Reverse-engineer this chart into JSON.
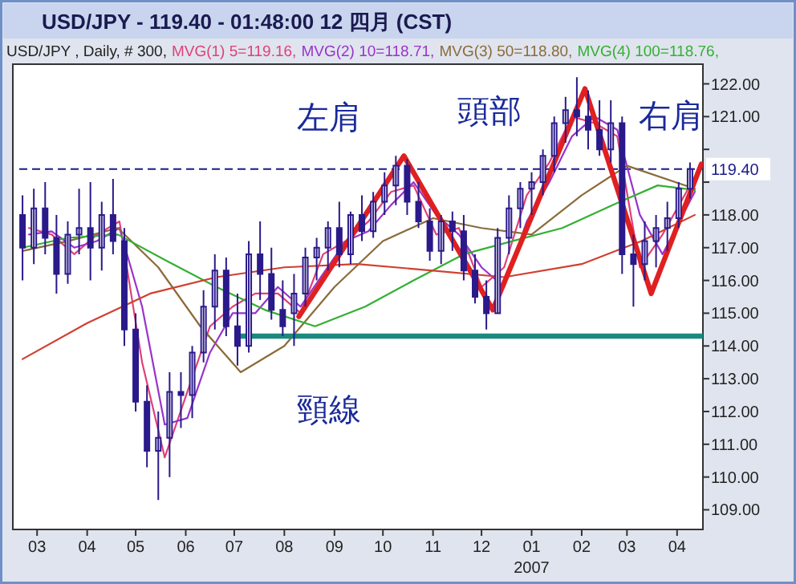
{
  "chart_data": {
    "type": "candlestick",
    "title": "USD/JPY - 119.40 - 01:48:00  12 四月 (CST)",
    "subtitle": "USD/JPY , Daily, # 300,",
    "color": "#2a1a8a",
    "x": [
      "2006-02-20",
      "2006-02-27",
      "2006-03-06",
      "2006-03-13",
      "2006-03-20",
      "2006-03-27",
      "2006-04-03",
      "2006-04-10",
      "2006-04-17",
      "2006-04-24",
      "2006-05-01",
      "2006-05-08",
      "2006-05-15",
      "2006-05-22",
      "2006-05-29",
      "2006-06-05",
      "2006-06-12",
      "2006-06-19",
      "2006-06-26",
      "2006-07-03",
      "2006-07-10",
      "2006-07-17",
      "2006-07-24",
      "2006-07-31",
      "2006-08-07",
      "2006-08-14",
      "2006-08-21",
      "2006-08-28",
      "2006-09-04",
      "2006-09-11",
      "2006-09-18",
      "2006-09-25",
      "2006-10-02",
      "2006-10-09",
      "2006-10-16",
      "2006-10-23",
      "2006-10-30",
      "2006-11-06",
      "2006-11-13",
      "2006-11-20",
      "2006-11-27",
      "2006-12-04",
      "2006-12-11",
      "2006-12-18",
      "2006-12-25",
      "2007-01-01",
      "2007-01-08",
      "2007-01-15",
      "2007-01-22",
      "2007-01-29",
      "2007-02-05",
      "2007-02-12",
      "2007-02-19",
      "2007-02-26",
      "2007-03-05",
      "2007-03-12",
      "2007-03-19",
      "2007-03-26",
      "2007-04-02",
      "2007-04-09"
    ],
    "ohlc": [
      [
        118.0,
        118.6,
        116.0,
        117.0
      ],
      [
        117.0,
        118.8,
        116.5,
        118.2
      ],
      [
        118.2,
        119.0,
        116.8,
        117.3
      ],
      [
        117.3,
        118.0,
        115.6,
        116.2
      ],
      [
        116.2,
        117.8,
        115.9,
        117.4
      ],
      [
        117.4,
        118.8,
        116.8,
        117.6
      ],
      [
        117.6,
        119.0,
        116.0,
        117.0
      ],
      [
        117.0,
        118.4,
        116.3,
        118.0
      ],
      [
        118.0,
        119.1,
        116.8,
        117.2
      ],
      [
        117.2,
        117.6,
        114.0,
        114.5
      ],
      [
        114.5,
        115.0,
        112.0,
        112.3
      ],
      [
        112.3,
        112.8,
        110.3,
        110.8
      ],
      [
        110.8,
        112.0,
        109.3,
        111.2
      ],
      [
        111.2,
        113.2,
        110.0,
        112.6
      ],
      [
        112.6,
        113.2,
        111.5,
        112.5
      ],
      [
        112.5,
        114.0,
        111.8,
        113.8
      ],
      [
        113.8,
        115.7,
        113.5,
        115.2
      ],
      [
        115.2,
        116.8,
        114.5,
        116.3
      ],
      [
        116.3,
        116.7,
        114.3,
        114.6
      ],
      [
        114.6,
        115.6,
        113.4,
        114.0
      ],
      [
        114.0,
        117.2,
        113.8,
        116.8
      ],
      [
        116.8,
        117.8,
        115.4,
        116.2
      ],
      [
        116.2,
        117.0,
        114.8,
        115.1
      ],
      [
        115.1,
        116.0,
        114.3,
        114.6
      ],
      [
        115.0,
        116.2,
        114.0,
        115.6
      ],
      [
        115.6,
        117.0,
        115.2,
        116.7
      ],
      [
        116.7,
        117.3,
        116.0,
        117.0
      ],
      [
        117.0,
        117.8,
        116.3,
        117.6
      ],
      [
        117.6,
        118.4,
        116.4,
        116.8
      ],
      [
        116.8,
        118.1,
        116.5,
        118.0
      ],
      [
        118.0,
        118.6,
        117.2,
        117.5
      ],
      [
        117.5,
        118.7,
        117.3,
        118.4
      ],
      [
        118.4,
        119.3,
        118.0,
        118.9
      ],
      [
        118.9,
        119.8,
        118.3,
        119.5
      ],
      [
        119.5,
        119.7,
        118.0,
        118.4
      ],
      [
        118.4,
        119.0,
        117.6,
        117.8
      ],
      [
        117.8,
        118.2,
        116.6,
        116.9
      ],
      [
        116.9,
        118.0,
        116.5,
        117.8
      ],
      [
        117.8,
        118.1,
        116.9,
        117.5
      ],
      [
        117.5,
        118.0,
        116.0,
        116.3
      ],
      [
        116.3,
        116.8,
        115.3,
        115.5
      ],
      [
        115.5,
        116.0,
        114.5,
        115.0
      ],
      [
        115.0,
        117.6,
        115.0,
        117.3
      ],
      [
        117.3,
        118.6,
        116.8,
        118.2
      ],
      [
        118.2,
        119.0,
        117.6,
        118.8
      ],
      [
        118.8,
        119.3,
        118.0,
        119.0
      ],
      [
        119.0,
        120.0,
        118.6,
        119.8
      ],
      [
        119.8,
        121.0,
        119.3,
        120.8
      ],
      [
        120.8,
        121.6,
        120.2,
        121.2
      ],
      [
        121.2,
        122.2,
        120.4,
        121.0
      ],
      [
        121.0,
        121.8,
        120.0,
        120.6
      ],
      [
        120.6,
        121.5,
        119.8,
        120.0
      ],
      [
        120.0,
        121.5,
        119.6,
        120.8
      ],
      [
        120.8,
        121.0,
        116.2,
        116.8
      ],
      [
        116.8,
        117.4,
        115.2,
        116.5
      ],
      [
        116.5,
        117.8,
        116.0,
        117.2
      ],
      [
        117.2,
        118.0,
        116.4,
        117.6
      ],
      [
        117.6,
        118.4,
        116.9,
        117.9
      ],
      [
        117.9,
        119.0,
        117.6,
        118.8
      ],
      [
        118.8,
        119.6,
        118.5,
        119.4
      ]
    ],
    "series": [
      {
        "type": "line",
        "name": "MVG(1) 5=119.16,",
        "color": "#e0407a",
        "x": [
          "2006-02-24",
          "2006-03-10",
          "2006-03-24",
          "2006-04-07",
          "2006-04-21",
          "2006-05-05",
          "2006-05-19",
          "2006-06-02",
          "2006-06-16",
          "2006-06-30",
          "2006-07-14",
          "2006-07-28",
          "2006-08-11",
          "2006-08-25",
          "2006-09-08",
          "2006-09-22",
          "2006-10-06",
          "2006-10-20",
          "2006-11-03",
          "2006-11-17",
          "2006-12-01",
          "2006-12-15",
          "2006-12-29",
          "2007-01-12",
          "2007-01-26",
          "2007-02-09",
          "2007-02-23",
          "2007-03-09",
          "2007-03-23",
          "2007-04-12"
        ],
        "values": [
          117.6,
          117.4,
          116.8,
          117.4,
          117.8,
          113.5,
          110.6,
          112.6,
          114.6,
          115.2,
          115.6,
          115.6,
          115.0,
          116.8,
          117.2,
          117.8,
          118.7,
          118.9,
          117.4,
          117.6,
          115.8,
          116.4,
          118.6,
          119.6,
          121.0,
          120.8,
          120.4,
          116.4,
          117.4,
          119.16
        ]
      },
      {
        "type": "line",
        "name": "MVG(2) 10=118.71,",
        "color": "#9933cc",
        "x": [
          "2006-02-24",
          "2006-03-10",
          "2006-03-24",
          "2006-04-07",
          "2006-04-21",
          "2006-05-05",
          "2006-05-19",
          "2006-06-02",
          "2006-06-16",
          "2006-06-30",
          "2006-07-14",
          "2006-07-28",
          "2006-08-11",
          "2006-08-25",
          "2006-09-08",
          "2006-09-22",
          "2006-10-06",
          "2006-10-20",
          "2006-11-03",
          "2006-11-17",
          "2006-12-01",
          "2006-12-15",
          "2006-12-29",
          "2007-01-12",
          "2007-01-26",
          "2007-02-09",
          "2007-02-23",
          "2007-03-09",
          "2007-03-23",
          "2007-04-12"
        ],
        "values": [
          117.4,
          117.5,
          117.0,
          117.2,
          117.6,
          115.2,
          111.6,
          111.8,
          113.8,
          115.0,
          115.0,
          115.8,
          115.2,
          116.2,
          117.2,
          117.5,
          118.3,
          119.0,
          118.0,
          117.4,
          116.4,
          115.8,
          117.8,
          119.0,
          120.4,
          121.0,
          120.6,
          118.0,
          116.8,
          118.71
        ]
      },
      {
        "type": "line",
        "name": "MVG(3) 50=118.80,",
        "color": "#8b6b3a",
        "x": [
          "2006-02-20",
          "2006-03-20",
          "2006-04-20",
          "2006-05-15",
          "2006-06-10",
          "2006-07-05",
          "2006-08-01",
          "2006-09-01",
          "2006-10-01",
          "2006-11-01",
          "2006-12-01",
          "2007-01-01",
          "2007-02-01",
          "2007-03-01",
          "2007-04-12"
        ],
        "values": [
          116.9,
          117.2,
          117.6,
          116.4,
          114.6,
          113.2,
          114.0,
          115.8,
          117.2,
          117.9,
          117.6,
          117.4,
          118.6,
          119.5,
          118.8
        ]
      },
      {
        "type": "line",
        "name": "MVG(4) 100=118.76,",
        "color": "#33b033",
        "x": [
          "2006-02-20",
          "2006-03-20",
          "2006-04-20",
          "2006-05-20",
          "2006-06-20",
          "2006-07-20",
          "2006-08-20",
          "2006-09-20",
          "2006-10-20",
          "2006-11-20",
          "2006-12-20",
          "2007-01-20",
          "2007-02-20",
          "2007-03-20",
          "2007-04-12"
        ],
        "values": [
          117.0,
          117.3,
          117.4,
          116.6,
          115.8,
          115.1,
          114.6,
          115.2,
          116.0,
          116.8,
          117.2,
          117.6,
          118.3,
          118.9,
          118.76
        ]
      },
      {
        "type": "line",
        "color": "#d04030",
        "x": [
          "2006-02-20",
          "2006-04-01",
          "2006-05-10",
          "2006-06-20",
          "2006-08-01",
          "2006-09-15",
          "2006-11-01",
          "2006-12-15",
          "2007-02-01",
          "2007-03-10",
          "2007-04-12"
        ],
        "values": [
          113.6,
          114.7,
          115.6,
          116.1,
          116.4,
          116.5,
          116.3,
          116.1,
          116.5,
          117.2,
          118.0
        ]
      },
      {
        "type": "line",
        "color": "#e02020",
        "x": [
          "2006-08-10",
          "2006-10-14",
          "2006-12-08",
          "2007-02-03",
          "2007-03-16",
          "2007-04-16"
        ],
        "values": [
          114.9,
          119.8,
          115.1,
          121.85,
          115.6,
          119.55
        ]
      },
      {
        "type": "line",
        "color": "#1a8a80",
        "x": [
          "2006-07-04",
          "2007-04-17"
        ],
        "values": [
          114.3,
          114.3
        ]
      }
    ],
    "legend": "top",
    "xlim": [
      "2006-02-14",
      "2007-04-17"
    ],
    "xticks": [
      {
        "value": "2006-03-01",
        "label": "03"
      },
      {
        "value": "2006-04-01",
        "label": "04"
      },
      {
        "value": "2006-05-01",
        "label": "05"
      },
      {
        "value": "2006-06-01",
        "label": "06"
      },
      {
        "value": "2006-07-01",
        "label": "07"
      },
      {
        "value": "2006-08-01",
        "label": "08"
      },
      {
        "value": "2006-09-01",
        "label": "09"
      },
      {
        "value": "2006-10-01",
        "label": "10"
      },
      {
        "value": "2006-11-01",
        "label": "11"
      },
      {
        "value": "2006-12-01",
        "label": "12"
      },
      {
        "value": "2007-01-01",
        "label": "01\n2007"
      },
      {
        "value": "2007-02-01",
        "label": "02"
      },
      {
        "value": "2007-03-01",
        "label": "03"
      },
      {
        "value": "2007-04-01",
        "label": "04"
      }
    ],
    "ylim": [
      108.4,
      122.6
    ],
    "yticks": [
      {
        "value": 109,
        "label": "109.00"
      },
      {
        "value": 110,
        "label": "110.00"
      },
      {
        "value": 111,
        "label": "111.00"
      },
      {
        "value": 112,
        "label": "112.00"
      },
      {
        "value": 113,
        "label": "113.00"
      },
      {
        "value": 114,
        "label": "114.00"
      },
      {
        "value": 115,
        "label": "115.00"
      },
      {
        "value": 116,
        "label": "116.00"
      },
      {
        "value": 117,
        "label": "117.00"
      },
      {
        "value": 118,
        "label": "118.00"
      },
      {
        "value": 119,
        "label": null
      },
      {
        "value": 120,
        "label": null
      },
      {
        "value": 121,
        "label": "121.00"
      },
      {
        "value": 122,
        "label": "122.00"
      }
    ],
    "ref_lines": [
      {
        "axis": "y",
        "value": 119.4,
        "label": "119.40",
        "color": "#1a1a8c",
        "line_style": "dashed"
      }
    ],
    "annotations": [
      "左肩",
      "頭部",
      "頸線",
      "右肩"
    ]
  }
}
